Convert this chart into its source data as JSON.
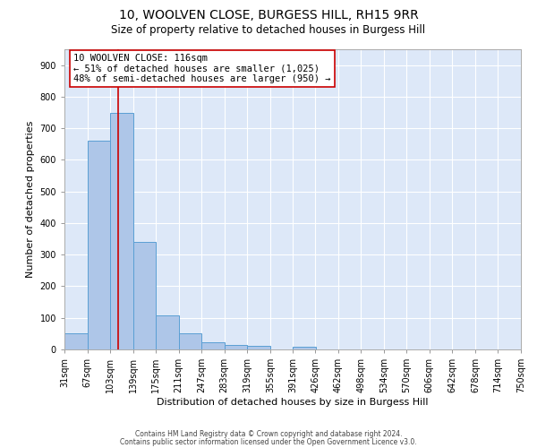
{
  "title": "10, WOOLVEN CLOSE, BURGESS HILL, RH15 9RR",
  "subtitle": "Size of property relative to detached houses in Burgess Hill",
  "xlabel": "Distribution of detached houses by size in Burgess Hill",
  "ylabel": "Number of detached properties",
  "footnote1": "Contains HM Land Registry data © Crown copyright and database right 2024.",
  "footnote2": "Contains public sector information licensed under the Open Government Licence v3.0.",
  "bin_edges": [
    31,
    67,
    103,
    139,
    175,
    211,
    247,
    283,
    319,
    355,
    391,
    426,
    462,
    498,
    534,
    570,
    606,
    642,
    678,
    714,
    750
  ],
  "bar_heights": [
    50,
    660,
    750,
    340,
    108,
    50,
    23,
    15,
    10,
    0,
    8,
    0,
    0,
    0,
    0,
    0,
    0,
    0,
    0,
    0
  ],
  "bar_color": "#aec6e8",
  "bar_edge_color": "#5a9fd4",
  "vline_x": 116,
  "vline_color": "#cc0000",
  "annotation_line1": "10 WOOLVEN CLOSE: 116sqm",
  "annotation_line2": "← 51% of detached houses are smaller (1,025)",
  "annotation_line3": "48% of semi-detached houses are larger (950) →",
  "ylim": [
    0,
    950
  ],
  "yticks": [
    0,
    100,
    200,
    300,
    400,
    500,
    600,
    700,
    800,
    900
  ],
  "background_color": "#ffffff",
  "plot_bg_color": "#dde8f8",
  "grid_color": "#ffffff",
  "title_fontsize": 10,
  "subtitle_fontsize": 8.5,
  "xlabel_fontsize": 8,
  "ylabel_fontsize": 8,
  "tick_fontsize": 7,
  "annot_fontsize": 7.5
}
